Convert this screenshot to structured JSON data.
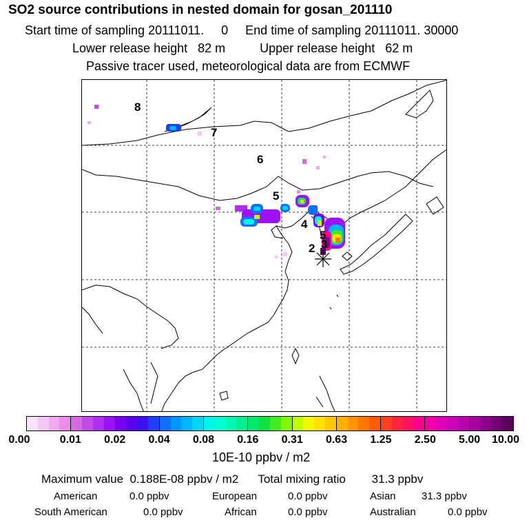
{
  "header": {
    "title": "SO2 source contributions in nested domain for gosan_201110",
    "sampling": "Start time of sampling 20111011.     0     End time of sampling 20111011. 30000",
    "release": "Lower release height   82 m          Upper release height   62 m",
    "tracer": "Passive tracer used, meteorological data are from ECMWF"
  },
  "map": {
    "receptor_marker": "*",
    "labels": [
      "8",
      "7",
      "6",
      "5",
      "4",
      "5",
      "3",
      "2"
    ]
  },
  "colorbar": {
    "colors": [
      "#fbe4fb",
      "#f6c6f6",
      "#f0aaf0",
      "#e88ee8",
      "#d66ae0",
      "#c44ae8",
      "#b02ef0",
      "#9c12f4",
      "#7a00f4",
      "#5a00ee",
      "#3c10f0",
      "#2040f8",
      "#1070fc",
      "#0094fc",
      "#00b6fa",
      "#00d8f4",
      "#00f4e8",
      "#00fcd0",
      "#00f8b0",
      "#00ef90",
      "#00e870",
      "#10e040",
      "#40ec20",
      "#80f800",
      "#c0fc00",
      "#f0f800",
      "#ffe000",
      "#ffc800",
      "#ffb000",
      "#ff9400",
      "#ff7800",
      "#ff5c00",
      "#ff4020",
      "#ff2440",
      "#ff1060",
      "#ff0090",
      "#f000a8",
      "#de00b4",
      "#cc00b8",
      "#b800b0",
      "#a4009e",
      "#8c008a",
      "#740076",
      "#5c005e"
    ],
    "ticks": [
      "0.00",
      "0.01",
      "0.02",
      "0.04",
      "0.08",
      "0.16",
      "0.31",
      "0.63",
      "1.25",
      "2.50",
      "5.00",
      "10.00"
    ]
  },
  "unit": "10E-10 ppbv / m2",
  "summary": {
    "max_line": "Maximum value  0.188E-08 ppbv / m2      Total mixing ratio        31.3 ppbv",
    "regions": [
      {
        "name": "American",
        "value": "0.0 ppbv"
      },
      {
        "name": "European",
        "value": "0.0 ppbv"
      },
      {
        "name": "Asian",
        "value": "31.3 ppbv"
      },
      {
        "name": "South American",
        "value": "0.0 ppbv"
      },
      {
        "name": "African",
        "value": "0.0 ppbv"
      },
      {
        "name": "Australian",
        "value": "0.0 ppbv"
      }
    ]
  }
}
